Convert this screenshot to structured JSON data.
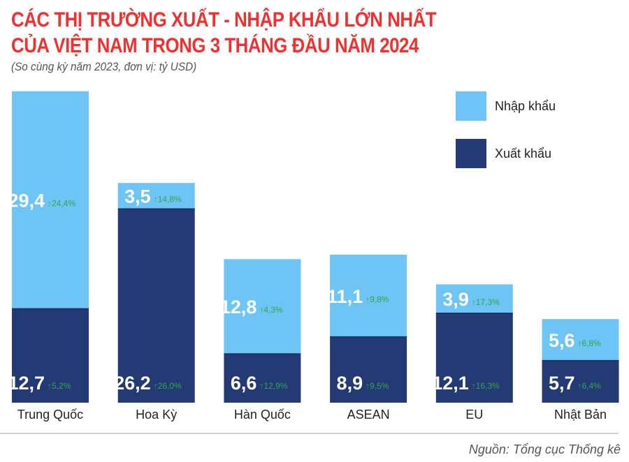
{
  "title_line1": "CÁC THỊ TRƯỜNG XUẤT - NHẬP KHẨU LỚN NHẤT",
  "title_line2": "CỦA VIỆT NAM TRONG 3 THÁNG ĐẦU NĂM 2024",
  "subtitle": "(So cùng kỳ năm 2023, đơn vị: tỷ USD)",
  "source": "Nguồn: Tổng cục Thống kê",
  "colors": {
    "import": "#6ec4f5",
    "export": "#243a74",
    "title": "#ee3131",
    "growth": "#2ea84a"
  },
  "chart_data": {
    "type": "bar",
    "stacked": true,
    "categories": [
      "Trung Quốc",
      "Hoa Kỳ",
      "Hàn Quốc",
      "ASEAN",
      "EU",
      "Nhật Bản"
    ],
    "series": [
      {
        "name": "Xuất khẩu",
        "values": [
          12.7,
          26.2,
          6.6,
          8.9,
          12.1,
          5.7
        ],
        "labels": [
          "12,7",
          "26,2",
          "6,6",
          "8,9",
          "12,1",
          "5,7"
        ],
        "growth": [
          "↑5,2%",
          "↑26,0%",
          "↑12,9%",
          "↑9,5%",
          "↑16,3%",
          "↑6,4%"
        ]
      },
      {
        "name": "Nhập khẩu",
        "values": [
          29.4,
          3.5,
          12.8,
          11.1,
          3.9,
          5.6
        ],
        "labels": [
          "29,4",
          "3,5",
          "12,8",
          "11,1",
          "3,9",
          "5,6"
        ],
        "growth": [
          "↑24,4%",
          "↑14,8%",
          "↑4,3%",
          "↑9,8%",
          "↑17,3%",
          "↑6,8%"
        ]
      }
    ],
    "legend": {
      "position": "top-right",
      "entries": [
        "Nhập khẩu",
        "Xuất khẩu"
      ]
    },
    "grid": false
  }
}
